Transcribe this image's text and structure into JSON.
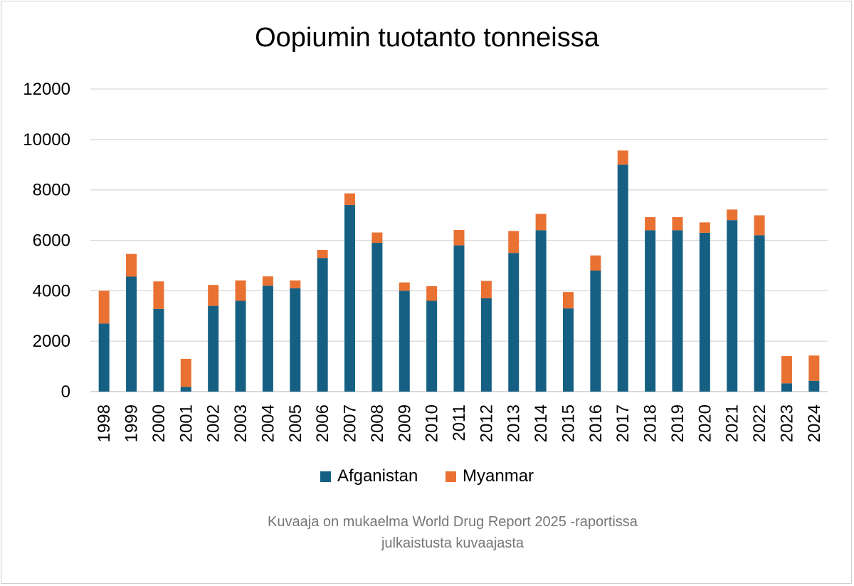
{
  "chart_data": {
    "type": "bar",
    "stacked": true,
    "title": "Oopiumin tuotanto tonneissa",
    "xlabel": "",
    "ylabel": "",
    "ylim": [
      0,
      12000
    ],
    "yticks": [
      0,
      2000,
      4000,
      6000,
      8000,
      10000,
      12000
    ],
    "grid": true,
    "legend_position": "bottom",
    "categories": [
      "1998",
      "1999",
      "2000",
      "2001",
      "2002",
      "2003",
      "2004",
      "2005",
      "2006",
      "2007",
      "2008",
      "2009",
      "2010",
      "2011",
      "2012",
      "2013",
      "2014",
      "2015",
      "2016",
      "2017",
      "2018",
      "2019",
      "2020",
      "2021",
      "2022",
      "2023",
      "2024"
    ],
    "series": [
      {
        "name": "Afganistan",
        "color": "#156082",
        "values": [
          2700,
          4560,
          3280,
          185,
          3400,
          3600,
          4200,
          4100,
          5300,
          7400,
          5900,
          4000,
          3600,
          5800,
          3700,
          5500,
          6400,
          3300,
          4800,
          9000,
          6400,
          6400,
          6300,
          6800,
          6200,
          330,
          430
        ]
      },
      {
        "name": "Myanmar",
        "color": "#e97132",
        "values": [
          1300,
          900,
          1090,
          1115,
          830,
          810,
          370,
          310,
          320,
          460,
          410,
          330,
          580,
          610,
          690,
          870,
          650,
          650,
          600,
          560,
          520,
          520,
          410,
          420,
          790,
          1080,
          1000
        ]
      }
    ]
  },
  "note": {
    "line1": "Kuvaaja on mukaelma World Drug Report 2025 -raportissa",
    "line2": "julkaistusta kuvaajasta"
  }
}
